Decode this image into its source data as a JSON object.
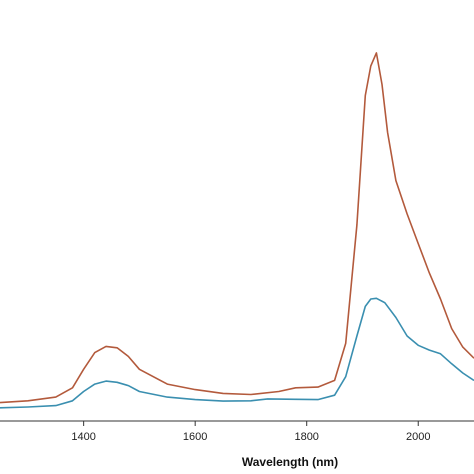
{
  "chart_data": {
    "type": "line",
    "title": "",
    "xlabel": "Wavelength (nm)",
    "ylabel": "",
    "xlim": [
      1250,
      2100
    ],
    "ylim": [
      0,
      1
    ],
    "x_ticks": [
      1400,
      1600,
      1800,
      2000
    ],
    "x_tick_labels": [
      "1400",
      "1600",
      "1800",
      "2000"
    ],
    "grid": false,
    "legend": "none",
    "series": [
      {
        "color": "#b35a3c",
        "points": [
          [
            1250,
            0.02
          ],
          [
            1300,
            0.025
          ],
          [
            1350,
            0.035
          ],
          [
            1380,
            0.06
          ],
          [
            1400,
            0.11
          ],
          [
            1420,
            0.155
          ],
          [
            1440,
            0.172
          ],
          [
            1460,
            0.168
          ],
          [
            1480,
            0.145
          ],
          [
            1500,
            0.11
          ],
          [
            1550,
            0.07
          ],
          [
            1600,
            0.055
          ],
          [
            1650,
            0.045
          ],
          [
            1700,
            0.042
          ],
          [
            1750,
            0.05
          ],
          [
            1780,
            0.06
          ],
          [
            1820,
            0.062
          ],
          [
            1850,
            0.08
          ],
          [
            1870,
            0.18
          ],
          [
            1890,
            0.5
          ],
          [
            1905,
            0.85
          ],
          [
            1915,
            0.93
          ],
          [
            1925,
            0.965
          ],
          [
            1935,
            0.88
          ],
          [
            1945,
            0.75
          ],
          [
            1960,
            0.62
          ],
          [
            1980,
            0.53
          ],
          [
            2000,
            0.45
          ],
          [
            2020,
            0.37
          ],
          [
            2040,
            0.3
          ],
          [
            2060,
            0.22
          ],
          [
            2080,
            0.17
          ],
          [
            2100,
            0.14
          ]
        ]
      },
      {
        "color": "#3a8fb0",
        "points": [
          [
            1250,
            0.006
          ],
          [
            1300,
            0.008
          ],
          [
            1350,
            0.012
          ],
          [
            1380,
            0.025
          ],
          [
            1400,
            0.05
          ],
          [
            1420,
            0.07
          ],
          [
            1440,
            0.078
          ],
          [
            1460,
            0.075
          ],
          [
            1480,
            0.066
          ],
          [
            1500,
            0.05
          ],
          [
            1550,
            0.035
          ],
          [
            1600,
            0.028
          ],
          [
            1650,
            0.024
          ],
          [
            1700,
            0.025
          ],
          [
            1730,
            0.03
          ],
          [
            1780,
            0.029
          ],
          [
            1820,
            0.028
          ],
          [
            1850,
            0.04
          ],
          [
            1870,
            0.09
          ],
          [
            1890,
            0.2
          ],
          [
            1905,
            0.28
          ],
          [
            1915,
            0.3
          ],
          [
            1925,
            0.302
          ],
          [
            1940,
            0.29
          ],
          [
            1960,
            0.25
          ],
          [
            1980,
            0.2
          ],
          [
            2000,
            0.175
          ],
          [
            2020,
            0.162
          ],
          [
            2040,
            0.152
          ],
          [
            2060,
            0.125
          ],
          [
            2080,
            0.1
          ],
          [
            2100,
            0.08
          ]
        ]
      }
    ]
  }
}
